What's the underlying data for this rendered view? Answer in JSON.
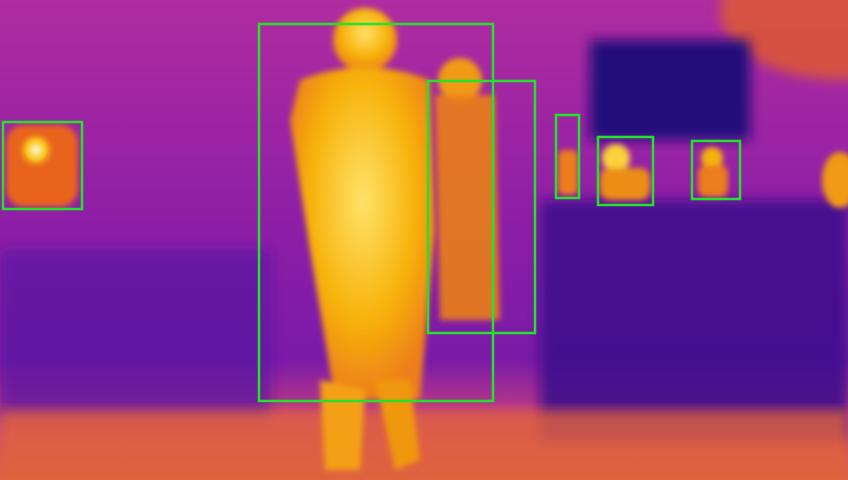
{
  "image": {
    "kind": "thermal-camera-frame",
    "palette": "inferno",
    "colors": {
      "cold": "#2a0a7a",
      "cool": "#6a1aa8",
      "mid": "#b02ca0",
      "warm": "#e8641e",
      "hot": "#f7b20a",
      "hottest": "#fff2a0",
      "box": "#22e32a"
    }
  },
  "detections": {
    "count": 6,
    "label": "person",
    "box_color": "#22e32a"
  }
}
